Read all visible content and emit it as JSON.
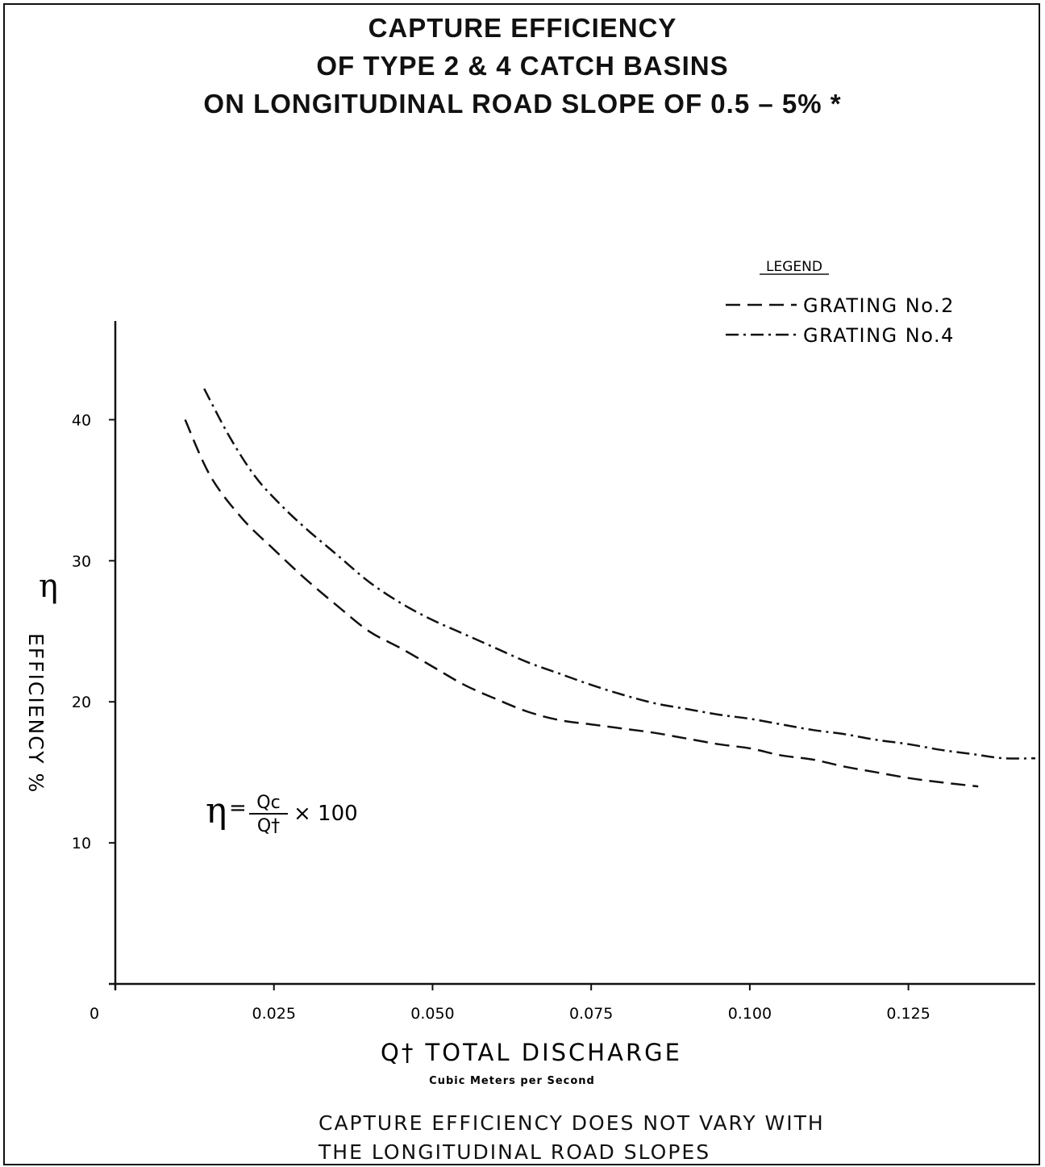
{
  "chart_data": {
    "type": "line",
    "title_lines": [
      "CAPTURE EFFICIENCY",
      "OF TYPE 2 & 4 CATCH BASINS",
      "ON LONGITUDINAL ROAD SLOPE OF 0.5 – 5% *"
    ],
    "xlabel": "Q† TOTAL DISCHARGE",
    "xlabel_units": "Cubic Meters per Second",
    "ylabel_symbol": "η",
    "ylabel": "EFFICIENCY %",
    "xlim": [
      0,
      0.145
    ],
    "ylim": [
      0,
      47
    ],
    "x_ticks": [
      {
        "value": 0.025,
        "label": "0.025"
      },
      {
        "value": 0.05,
        "label": "0.050"
      },
      {
        "value": 0.075,
        "label": "0.075"
      },
      {
        "value": 0.1,
        "label": "0.100"
      },
      {
        "value": 0.125,
        "label": "0.125"
      }
    ],
    "origin_label": "0",
    "y_ticks": [
      {
        "value": 10,
        "label": "10"
      },
      {
        "value": 20,
        "label": "20"
      },
      {
        "value": 30,
        "label": "30"
      },
      {
        "value": 40,
        "label": "40"
      }
    ],
    "grid": false,
    "legend": {
      "title": "LEGEND",
      "position": "top-right",
      "entries": [
        "GRATING No.2",
        "GRATING No.4"
      ]
    },
    "series": [
      {
        "name": "GRATING No.2",
        "style": "dashed",
        "x": [
          0.011,
          0.015,
          0.02,
          0.025,
          0.03,
          0.035,
          0.04,
          0.045,
          0.05,
          0.055,
          0.06,
          0.065,
          0.07,
          0.075,
          0.08,
          0.085,
          0.09,
          0.095,
          0.1,
          0.105,
          0.11,
          0.115,
          0.12,
          0.125,
          0.13,
          0.136
        ],
        "values": [
          40.0,
          36.0,
          33.0,
          30.8,
          28.7,
          26.8,
          25.0,
          23.8,
          22.5,
          21.2,
          20.2,
          19.3,
          18.7,
          18.4,
          18.1,
          17.8,
          17.4,
          17.0,
          16.7,
          16.2,
          15.9,
          15.4,
          15.0,
          14.6,
          14.3,
          14.0
        ]
      },
      {
        "name": "GRATING No.4",
        "style": "dash-dot",
        "x": [
          0.014,
          0.018,
          0.022,
          0.026,
          0.03,
          0.035,
          0.04,
          0.045,
          0.05,
          0.055,
          0.06,
          0.065,
          0.07,
          0.075,
          0.08,
          0.085,
          0.09,
          0.095,
          0.1,
          0.105,
          0.11,
          0.115,
          0.12,
          0.125,
          0.13,
          0.135,
          0.14,
          0.145
        ],
        "values": [
          42.2,
          38.8,
          36.0,
          34.0,
          32.3,
          30.4,
          28.5,
          27.0,
          25.8,
          24.8,
          23.8,
          22.8,
          22.0,
          21.2,
          20.5,
          19.9,
          19.5,
          19.1,
          18.8,
          18.4,
          18.0,
          17.7,
          17.3,
          17.0,
          16.6,
          16.3,
          16.0,
          16.0
        ]
      }
    ],
    "annotations": {
      "formula_symbol": "η",
      "formula_numerator": "Qc",
      "formula_denominator": "Q†",
      "formula_tail": "× 100"
    }
  },
  "footnote": {
    "line1": "CAPTURE EFFICIENCY DOES NOT VARY WITH",
    "line2": "THE LONGITUDINAL ROAD SLOPES"
  }
}
